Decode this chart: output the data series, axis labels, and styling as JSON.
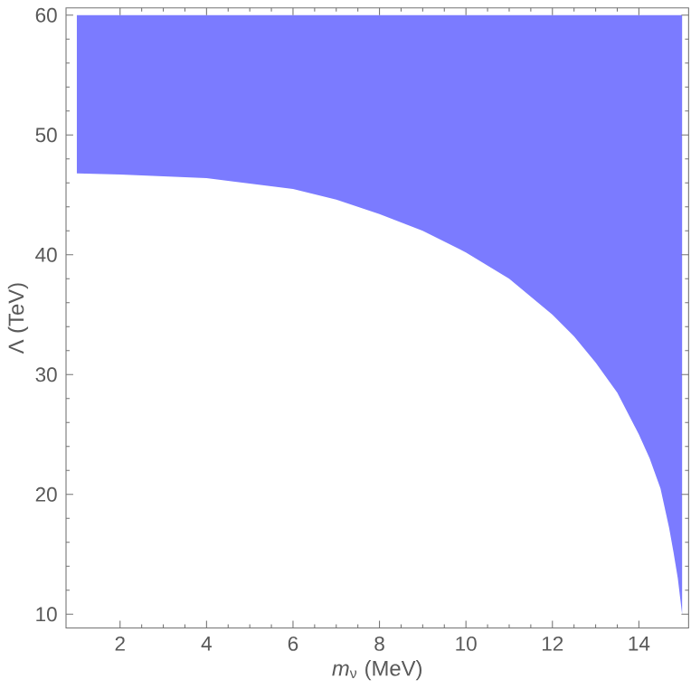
{
  "chart_data": {
    "type": "area",
    "xlabel": "*m*$_{ν}$ (MeV)",
    "ylabel": "Λ (TeV)",
    "x": [
      1,
      1,
      2,
      4,
      6,
      7,
      8,
      9,
      10,
      11,
      12,
      12.5,
      13,
      13.5,
      14,
      14.25,
      14.5,
      14.7,
      14.8,
      14.9,
      15,
      15
    ],
    "series": [
      {
        "color": "#7b7bff",
        "values": [
          60,
          46.8,
          46.7,
          46.4,
          45.5,
          44.6,
          43.4,
          42,
          40.2,
          38,
          35,
          33.2,
          31,
          28.5,
          25,
          23,
          20.5,
          17.2,
          15.2,
          13,
          10,
          60
        ]
      }
    ],
    "xlim": [
      0.75,
      15.15
    ],
    "ylim": [
      8.85,
      60.6
    ],
    "xticks": [
      2,
      4,
      6,
      8,
      10,
      12,
      14
    ],
    "yticks": [
      10,
      20,
      30,
      40,
      50,
      60
    ]
  }
}
